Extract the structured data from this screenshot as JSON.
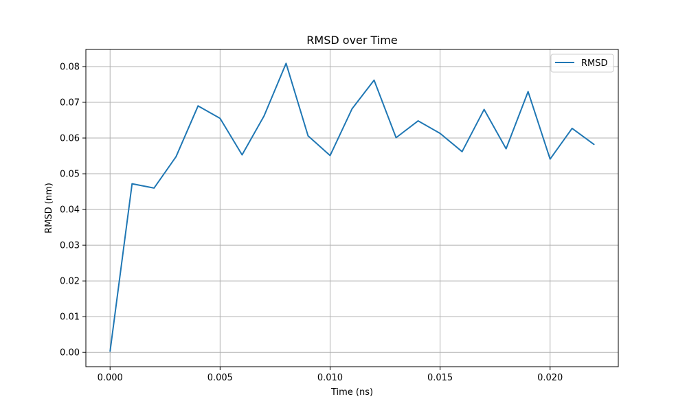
{
  "chart_data": {
    "type": "line",
    "title": "RMSD over Time",
    "xlabel": "Time (ns)",
    "ylabel": "RMSD (nm)",
    "xlim": [
      -0.0011,
      0.0231
    ],
    "ylim": [
      -0.004,
      0.0848
    ],
    "xticks": [
      0.0,
      0.005,
      0.01,
      0.015,
      0.02
    ],
    "xtick_labels": [
      "0.000",
      "0.005",
      "0.010",
      "0.015",
      "0.020"
    ],
    "yticks": [
      0.0,
      0.01,
      0.02,
      0.03,
      0.04,
      0.05,
      0.06,
      0.07,
      0.08
    ],
    "ytick_labels": [
      "0.00",
      "0.01",
      "0.02",
      "0.03",
      "0.04",
      "0.05",
      "0.06",
      "0.07",
      "0.08"
    ],
    "grid": true,
    "legend_position": "top-right",
    "series": [
      {
        "name": "RMSD",
        "color": "#1f77b4",
        "x": [
          0.0,
          0.001,
          0.002,
          0.003,
          0.004,
          0.005,
          0.006,
          0.007,
          0.008,
          0.009,
          0.01,
          0.011,
          0.012,
          0.013,
          0.014,
          0.015,
          0.016,
          0.017,
          0.018,
          0.019,
          0.02,
          0.021,
          0.022
        ],
        "y": [
          0.0003,
          0.0472,
          0.046,
          0.0548,
          0.069,
          0.0655,
          0.0553,
          0.0662,
          0.0809,
          0.0606,
          0.0551,
          0.0682,
          0.0762,
          0.0601,
          0.0648,
          0.0613,
          0.0562,
          0.068,
          0.057,
          0.073,
          0.0541,
          0.0627,
          0.0582
        ]
      }
    ]
  }
}
